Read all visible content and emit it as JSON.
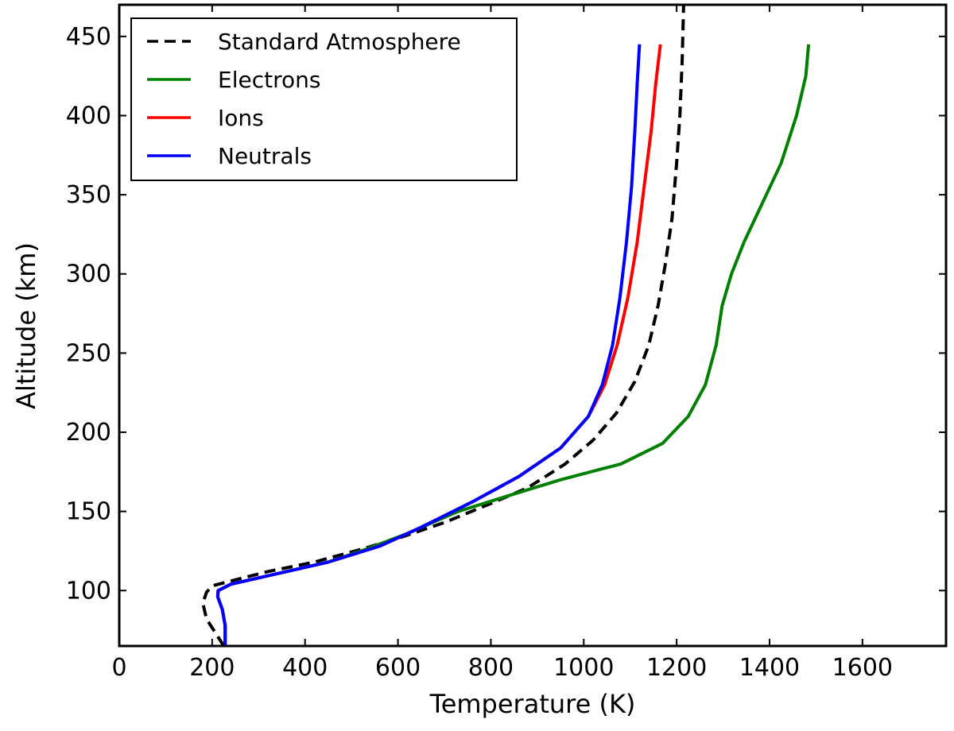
{
  "chart_data": {
    "type": "line",
    "title": "",
    "xlabel": "Temperature (K)",
    "ylabel": "Altitude (km)",
    "xlim": [
      0,
      1780
    ],
    "ylim": [
      65,
      470
    ],
    "xticks": [
      0,
      200,
      400,
      600,
      800,
      1000,
      1200,
      1400,
      1600
    ],
    "yticks": [
      100,
      150,
      200,
      250,
      300,
      350,
      400,
      450
    ],
    "legend_position": "top-left",
    "grid": false,
    "series": [
      {
        "name": "Standard Atmosphere",
        "color": "#000000",
        "style": "dashed",
        "points": [
          [
            225,
            65
          ],
          [
            210,
            72
          ],
          [
            188,
            82
          ],
          [
            180,
            92
          ],
          [
            188,
            99
          ],
          [
            200,
            103
          ],
          [
            240,
            106
          ],
          [
            320,
            112
          ],
          [
            420,
            118
          ],
          [
            520,
            126
          ],
          [
            600,
            133
          ],
          [
            700,
            143
          ],
          [
            800,
            155
          ],
          [
            880,
            165
          ],
          [
            960,
            180
          ],
          [
            1020,
            195
          ],
          [
            1070,
            212
          ],
          [
            1110,
            232
          ],
          [
            1140,
            255
          ],
          [
            1160,
            280
          ],
          [
            1175,
            305
          ],
          [
            1190,
            335
          ],
          [
            1200,
            370
          ],
          [
            1207,
            400
          ],
          [
            1212,
            435
          ],
          [
            1215,
            470
          ]
        ]
      },
      {
        "name": "Electrons",
        "color": "#008000",
        "style": "solid",
        "points": [
          [
            228,
            65
          ],
          [
            228,
            78
          ],
          [
            222,
            88
          ],
          [
            212,
            96
          ],
          [
            213,
            100
          ],
          [
            240,
            104
          ],
          [
            330,
            110
          ],
          [
            450,
            118
          ],
          [
            530,
            126
          ],
          [
            620,
            136
          ],
          [
            730,
            150
          ],
          [
            850,
            161
          ],
          [
            950,
            170
          ],
          [
            1080,
            180
          ],
          [
            1170,
            193
          ],
          [
            1225,
            210
          ],
          [
            1262,
            230
          ],
          [
            1285,
            255
          ],
          [
            1298,
            280
          ],
          [
            1318,
            300
          ],
          [
            1345,
            320
          ],
          [
            1385,
            345
          ],
          [
            1425,
            370
          ],
          [
            1458,
            400
          ],
          [
            1478,
            425
          ],
          [
            1484,
            445
          ]
        ]
      },
      {
        "name": "Ions",
        "color": "#ff0000",
        "style": "solid",
        "points": [
          [
            228,
            65
          ],
          [
            228,
            78
          ],
          [
            222,
            88
          ],
          [
            212,
            96
          ],
          [
            213,
            100
          ],
          [
            240,
            104
          ],
          [
            330,
            110
          ],
          [
            450,
            118
          ],
          [
            560,
            128
          ],
          [
            650,
            140
          ],
          [
            760,
            156
          ],
          [
            860,
            172
          ],
          [
            950,
            190
          ],
          [
            1010,
            210
          ],
          [
            1045,
            230
          ],
          [
            1072,
            255
          ],
          [
            1095,
            285
          ],
          [
            1115,
            320
          ],
          [
            1130,
            355
          ],
          [
            1145,
            390
          ],
          [
            1155,
            420
          ],
          [
            1165,
            445
          ]
        ]
      },
      {
        "name": "Neutrals",
        "color": "#0000ff",
        "style": "solid",
        "points": [
          [
            228,
            65
          ],
          [
            228,
            78
          ],
          [
            222,
            88
          ],
          [
            212,
            96
          ],
          [
            213,
            100
          ],
          [
            240,
            104
          ],
          [
            330,
            110
          ],
          [
            450,
            118
          ],
          [
            560,
            128
          ],
          [
            650,
            140
          ],
          [
            760,
            156
          ],
          [
            860,
            172
          ],
          [
            950,
            190
          ],
          [
            1010,
            210
          ],
          [
            1040,
            230
          ],
          [
            1062,
            255
          ],
          [
            1078,
            285
          ],
          [
            1092,
            320
          ],
          [
            1103,
            355
          ],
          [
            1110,
            390
          ],
          [
            1115,
            420
          ],
          [
            1120,
            445
          ]
        ]
      }
    ]
  }
}
